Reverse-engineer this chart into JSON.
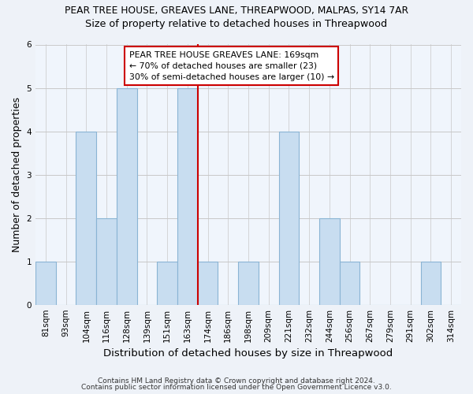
{
  "title": "PEAR TREE HOUSE, GREAVES LANE, THREAPWOOD, MALPAS, SY14 7AR",
  "subtitle": "Size of property relative to detached houses in Threapwood",
  "xlabel": "Distribution of detached houses by size in Threapwood",
  "ylabel": "Number of detached properties",
  "categories": [
    "81sqm",
    "93sqm",
    "104sqm",
    "116sqm",
    "128sqm",
    "139sqm",
    "151sqm",
    "163sqm",
    "174sqm",
    "186sqm",
    "198sqm",
    "209sqm",
    "221sqm",
    "232sqm",
    "244sqm",
    "256sqm",
    "267sqm",
    "279sqm",
    "291sqm",
    "302sqm",
    "314sqm"
  ],
  "values": [
    1,
    0,
    4,
    2,
    5,
    0,
    1,
    5,
    1,
    0,
    1,
    0,
    4,
    0,
    2,
    1,
    0,
    0,
    0,
    1,
    0
  ],
  "bar_color": "#c8ddf0",
  "bar_edge_color": "#8ab4d4",
  "vline_x_index": 8,
  "vline_color": "#cc0000",
  "annotation_title": "PEAR TREE HOUSE GREAVES LANE: 169sqm",
  "annotation_line2": "← 70% of detached houses are smaller (23)",
  "annotation_line3": "30% of semi-detached houses are larger (10) →",
  "ylim": [
    0,
    6
  ],
  "yticks": [
    0,
    1,
    2,
    3,
    4,
    5,
    6
  ],
  "footer1": "Contains HM Land Registry data © Crown copyright and database right 2024.",
  "footer2": "Contains public sector information licensed under the Open Government Licence v3.0.",
  "bg_color": "#eef2f8",
  "plot_bg_color": "#f0f5fc"
}
